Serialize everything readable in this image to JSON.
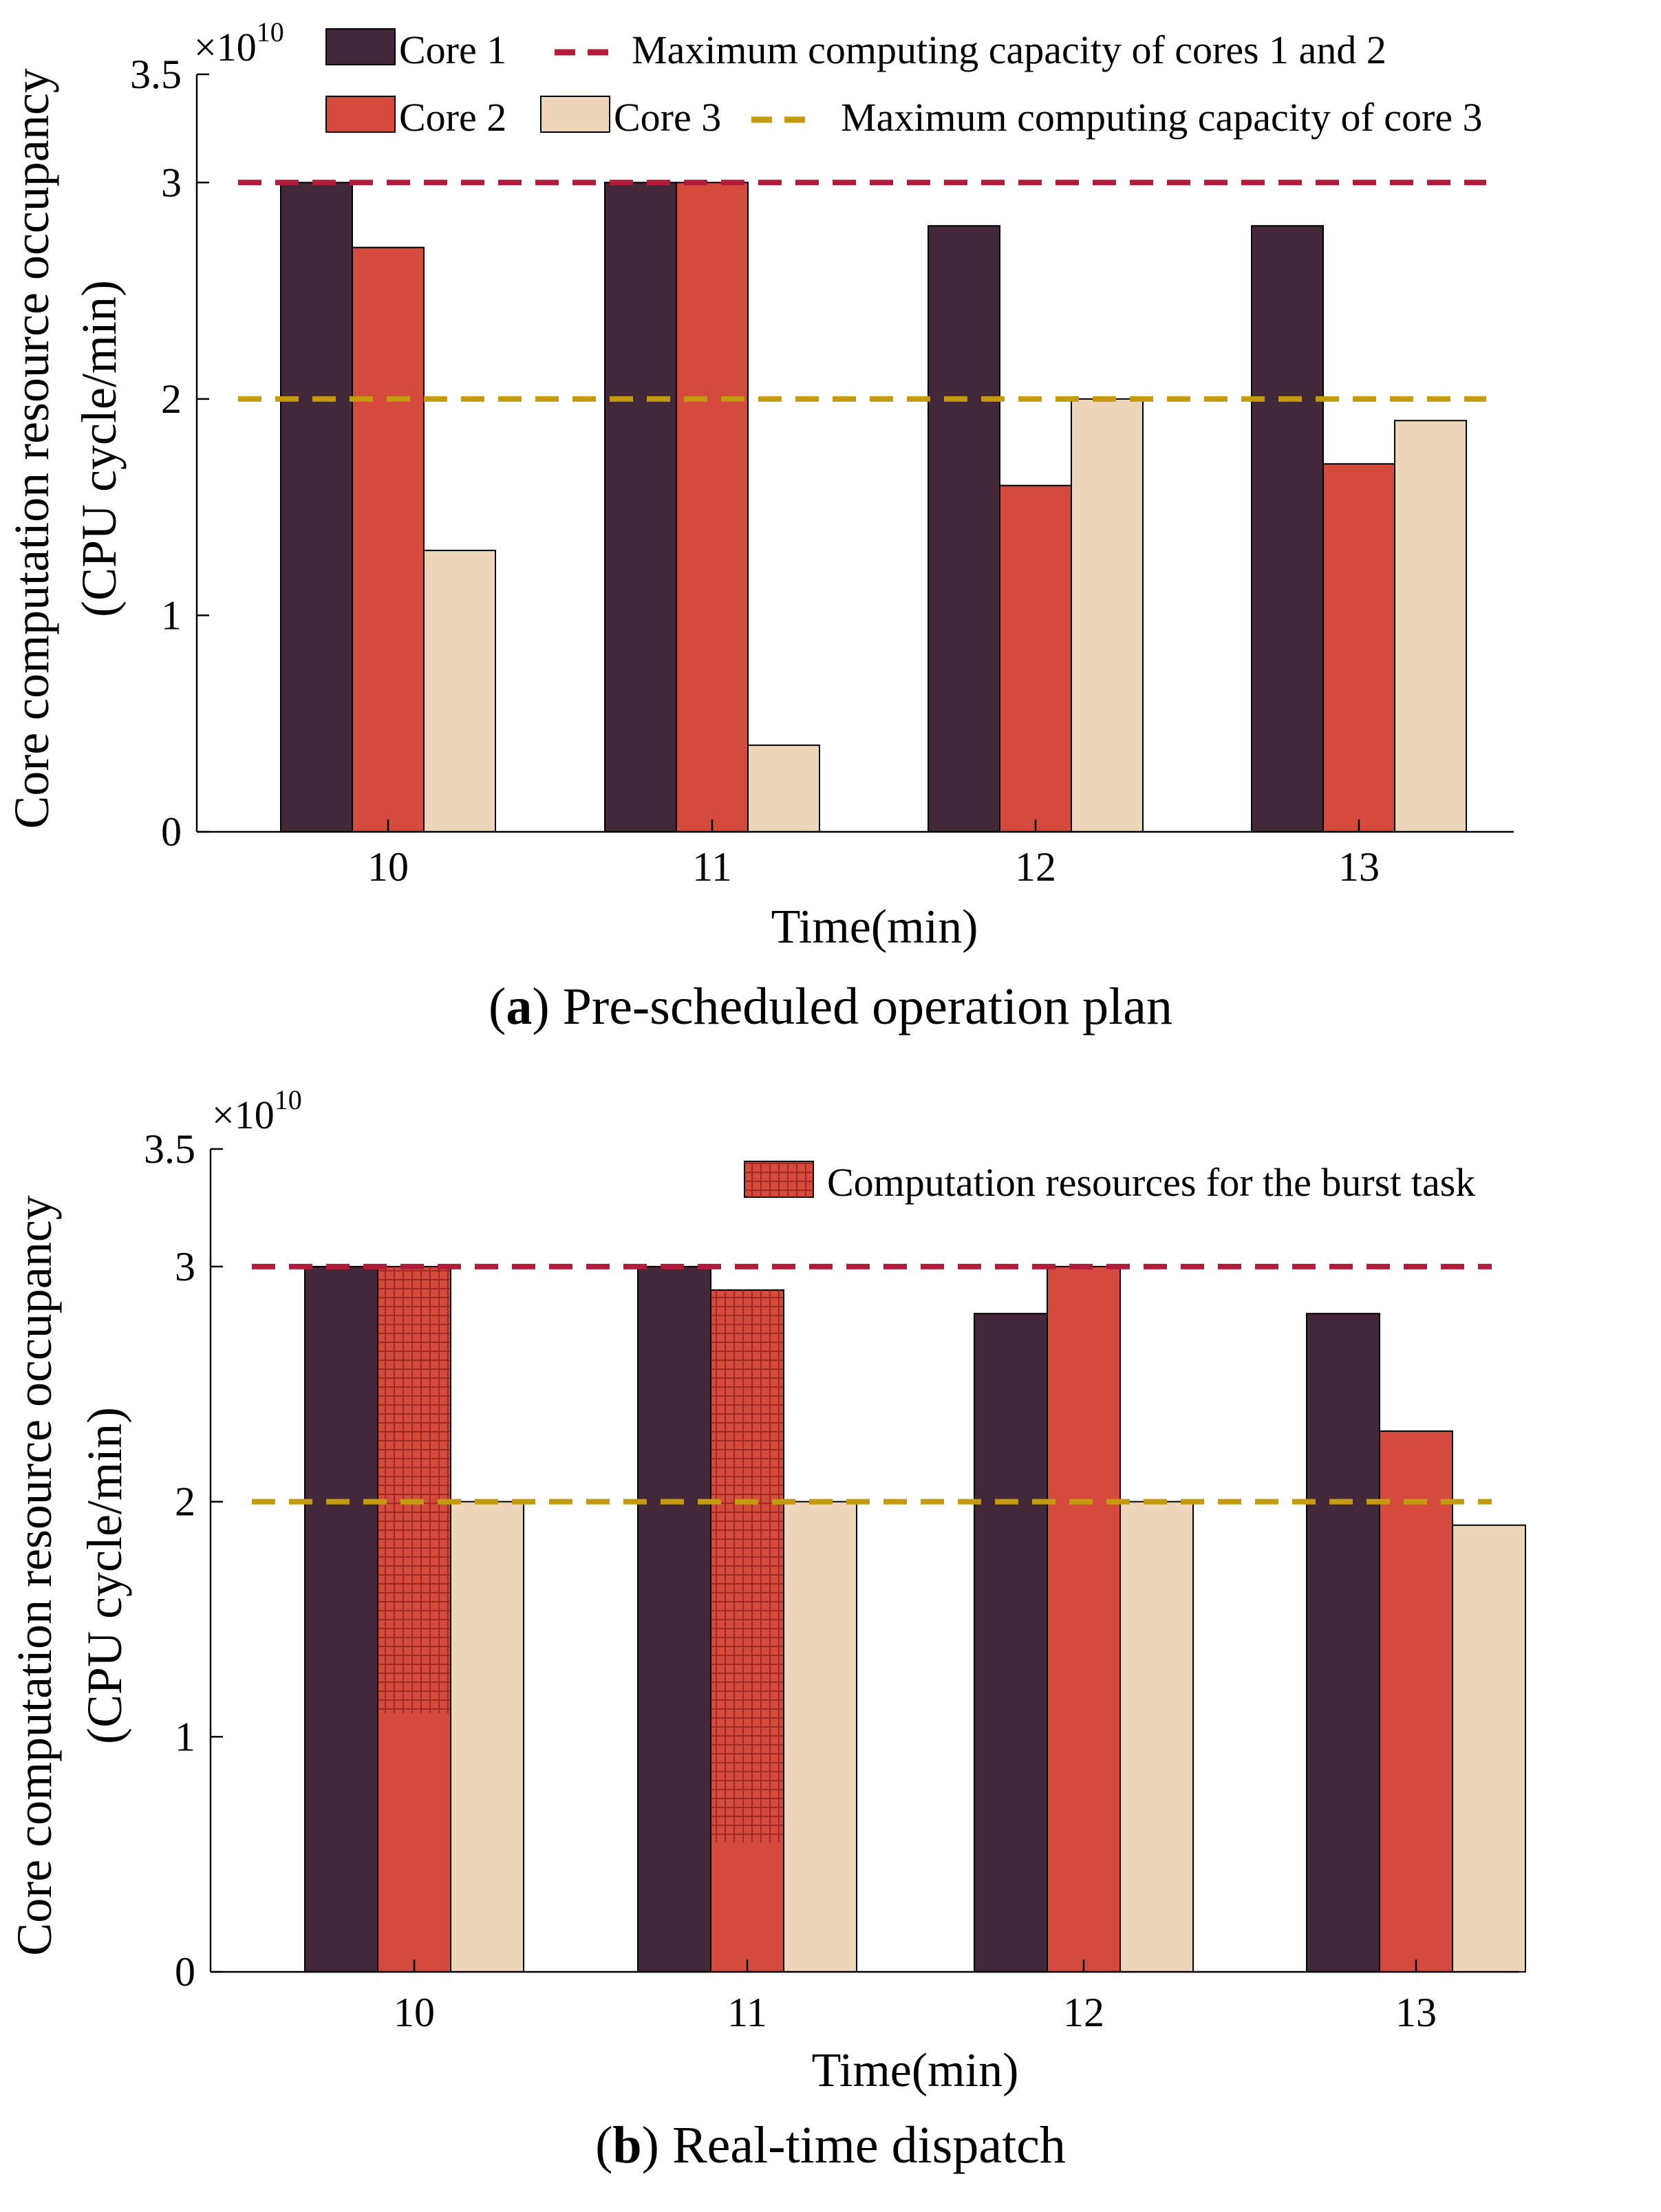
{
  "colors": {
    "core1": "#43283A",
    "core2": "#D44B3D",
    "core3": "#EED6BA",
    "cap12": "#B01C3A",
    "cap3": "#C49A0E",
    "hatch": "#9E2A22"
  },
  "captions": {
    "a_letter": "a",
    "a_text": " Pre-scheduled operation plan",
    "b_letter": "b",
    "b_text": " Real-time dispatch"
  },
  "chart_data": [
    {
      "id": "a",
      "type": "bar",
      "title": "",
      "xlabel": "Time(min)",
      "ylabel_line1": "Core computation resource occupancy",
      "ylabel_line2": "(CPU cycle/min)",
      "exponent_label": "×10",
      "exponent_power": "10",
      "categories": [
        "10",
        "11",
        "12",
        "13"
      ],
      "ylim": [
        0,
        3.5
      ],
      "yticks": [
        0,
        1,
        2,
        3,
        3.5
      ],
      "ytick_labels": [
        "0",
        "1",
        "2",
        "3",
        "3.5"
      ],
      "series": [
        {
          "name": "Core 1",
          "values": [
            3.0,
            3.0,
            2.8,
            2.8
          ]
        },
        {
          "name": "Core 2",
          "values": [
            2.7,
            3.0,
            1.6,
            1.7
          ]
        },
        {
          "name": "Core 3",
          "values": [
            1.3,
            0.4,
            2.0,
            1.9
          ]
        }
      ],
      "reference_lines": [
        {
          "name": "Maximum computing capacity of cores 1 and 2",
          "value": 3.0
        },
        {
          "name": "Maximum computing capacity of core 3",
          "value": 2.0
        }
      ],
      "legend_position": "top"
    },
    {
      "id": "b",
      "type": "bar",
      "title": "",
      "xlabel": "Time(min)",
      "ylabel_line1": "Core computation resource occupancy",
      "ylabel_line2": "(CPU cycle/min)",
      "exponent_label": "×10",
      "exponent_power": "10",
      "categories": [
        "10",
        "11",
        "12",
        "13"
      ],
      "ylim": [
        0,
        3.5
      ],
      "yticks": [
        0,
        1,
        2,
        3,
        3.5
      ],
      "ytick_labels": [
        "0",
        "1",
        "2",
        "3",
        "3.5"
      ],
      "series": [
        {
          "name": "Core 1",
          "values": [
            3.0,
            3.0,
            2.8,
            2.8
          ]
        },
        {
          "name": "Core 2",
          "values": [
            3.0,
            2.9,
            3.0,
            2.3
          ]
        },
        {
          "name": "Core 3",
          "values": [
            2.0,
            2.0,
            2.0,
            1.9
          ]
        }
      ],
      "burst_task": {
        "name": "Computation resources for the burst task",
        "series": "Core 2",
        "ranges": [
          [
            1.1,
            3.0
          ],
          [
            0.55,
            2.9
          ],
          null,
          null
        ]
      },
      "reference_lines": [
        {
          "name": "Maximum computing capacity of cores 1 and 2",
          "value": 3.0
        },
        {
          "name": "Maximum computing capacity of core 3",
          "value": 2.0
        }
      ],
      "legend_position": "top-right"
    }
  ]
}
